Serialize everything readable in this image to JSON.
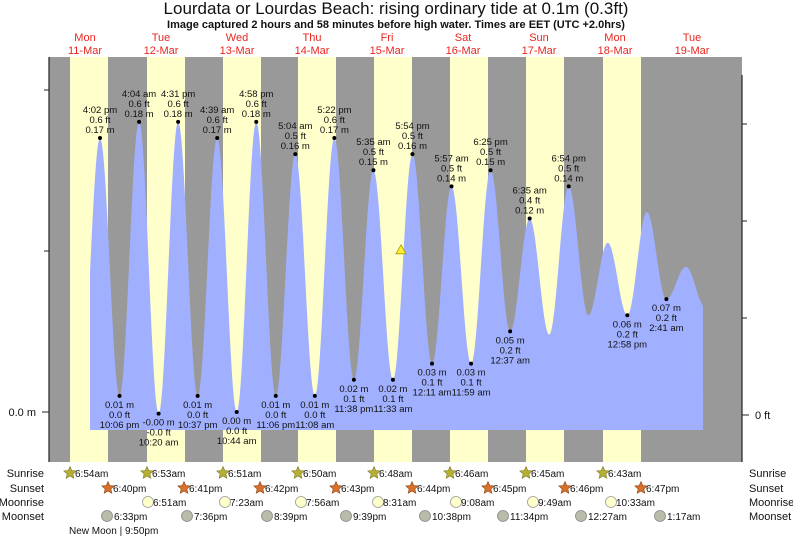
{
  "header": {
    "title": "Lourdata or Lourdas Beach: rising  ordinary tide at 0.1m (0.3ft)",
    "subtitle": "Image captured 2 hours and 58 minutes before high water. Times are EET (UTC +2.0hrs)"
  },
  "days": [
    {
      "name": "Mon",
      "date": "11-Mar"
    },
    {
      "name": "Tue",
      "date": "12-Mar"
    },
    {
      "name": "Wed",
      "date": "13-Mar"
    },
    {
      "name": "Thu",
      "date": "14-Mar"
    },
    {
      "name": "Fri",
      "date": "15-Mar"
    },
    {
      "name": "Sat",
      "date": "16-Mar"
    },
    {
      "name": "Sun",
      "date": "17-Mar"
    },
    {
      "name": "Mon",
      "date": "18-Mar"
    },
    {
      "name": "Tue",
      "date": "19-Mar"
    }
  ],
  "colors": {
    "water": "#a0b0ff",
    "day": "#ffffcc",
    "night": "#999999",
    "day_label": "#e8261f",
    "sunrise": "#b5b033",
    "sunset": "#d9702a",
    "moonrise": "#ffffcc",
    "moonset": "#bbbbaa"
  },
  "chart_data": {
    "type": "area",
    "title": "Lourdata or Lourdas Beach tide",
    "y_left_label": "0.0 m",
    "y_right_label": "0 ft",
    "ylim_m": [
      -0.012,
      0.2
    ],
    "current_level_m": 0.1,
    "extremes": [
      {
        "type": "high",
        "m": 0.17,
        "m_label": "0.17 m",
        "ft_label": "0.6 ft",
        "time": "4:02 pm"
      },
      {
        "type": "low",
        "m": 0.01,
        "m_label": "0.01 m",
        "ft_label": "0.0 ft",
        "time": "10:06 pm"
      },
      {
        "type": "high",
        "m": 0.18,
        "m_label": "0.18 m",
        "ft_label": "0.6 ft",
        "time": "4:04 am"
      },
      {
        "type": "low",
        "m": -0.001,
        "m_label": "-0.00 m",
        "ft_label": "-0.0 ft",
        "time": "10:20 am"
      },
      {
        "type": "high",
        "m": 0.18,
        "m_label": "0.18 m",
        "ft_label": "0.6 ft",
        "time": "4:31 pm"
      },
      {
        "type": "low",
        "m": 0.01,
        "m_label": "0.01 m",
        "ft_label": "0.0 ft",
        "time": "10:37 pm"
      },
      {
        "type": "high",
        "m": 0.17,
        "m_label": "0.17 m",
        "ft_label": "0.6 ft",
        "time": "4:39 am"
      },
      {
        "type": "low",
        "m": 0.0,
        "m_label": "0.00 m",
        "ft_label": "0.0 ft",
        "time": "10:44 am"
      },
      {
        "type": "high",
        "m": 0.18,
        "m_label": "0.18 m",
        "ft_label": "0.6 ft",
        "time": "4:58 pm"
      },
      {
        "type": "low",
        "m": 0.01,
        "m_label": "0.01 m",
        "ft_label": "0.0 ft",
        "time": "11:06 pm"
      },
      {
        "type": "high",
        "m": 0.16,
        "m_label": "0.16 m",
        "ft_label": "0.5 ft",
        "time": "5:04 am"
      },
      {
        "type": "low",
        "m": 0.01,
        "m_label": "0.01 m",
        "ft_label": "0.0 ft",
        "time": "11:08 am"
      },
      {
        "type": "high",
        "m": 0.17,
        "m_label": "0.17 m",
        "ft_label": "0.6 ft",
        "time": "5:22 pm"
      },
      {
        "type": "low",
        "m": 0.02,
        "m_label": "0.02 m",
        "ft_label": "0.1 ft",
        "time": "11:38 pm"
      },
      {
        "type": "high",
        "m": 0.15,
        "m_label": "0.15 m",
        "ft_label": "0.5 ft",
        "time": "5:35 am"
      },
      {
        "type": "low",
        "m": 0.02,
        "m_label": "0.02 m",
        "ft_label": "0.1 ft",
        "time": "11:33 am"
      },
      {
        "type": "high",
        "m": 0.16,
        "m_label": "0.16 m",
        "ft_label": "0.5 ft",
        "time": "5:54 pm"
      },
      {
        "type": "low",
        "m": 0.03,
        "m_label": "0.03 m",
        "ft_label": "0.1 ft",
        "time": "12:11 am"
      },
      {
        "type": "high",
        "m": 0.14,
        "m_label": "0.14 m",
        "ft_label": "0.5 ft",
        "time": "5:57 am"
      },
      {
        "type": "low",
        "m": 0.03,
        "m_label": "0.03 m",
        "ft_label": "0.1 ft",
        "time": "11:59 am"
      },
      {
        "type": "high",
        "m": 0.15,
        "m_label": "0.15 m",
        "ft_label": "0.5 ft",
        "time": "6:25 pm"
      },
      {
        "type": "low",
        "m": 0.05,
        "m_label": "0.05 m",
        "ft_label": "0.2 ft",
        "time": "12:37 am"
      },
      {
        "type": "high",
        "m": 0.12,
        "m_label": "0.12 m",
        "ft_label": "0.4 ft",
        "time": "6:35 am"
      },
      {
        "type": "low",
        "m": 0.048,
        "m_label": null,
        "ft_label": null,
        "time": null
      },
      {
        "type": "high",
        "m": 0.14,
        "m_label": "0.14 m",
        "ft_label": "0.5 ft",
        "time": "6:54 pm"
      },
      {
        "type": "low",
        "m": 0.06,
        "m_label": null,
        "ft_label": null,
        "time": null
      },
      {
        "type": "high",
        "m": 0.105,
        "m_label": null,
        "ft_label": null,
        "time": null
      },
      {
        "type": "low",
        "m": 0.06,
        "m_label": "0.06 m",
        "ft_label": "0.2 ft",
        "time": "12:58 pm"
      },
      {
        "type": "high",
        "m": 0.124,
        "m_label": null,
        "ft_label": null,
        "time": null
      },
      {
        "type": "low",
        "m": 0.07,
        "m_label": "0.07 m",
        "ft_label": "0.2 ft",
        "time": "2:41 am"
      },
      {
        "type": "high",
        "m": 0.09,
        "m_label": null,
        "ft_label": null,
        "time": null
      }
    ]
  },
  "almanac": {
    "labels": {
      "sunrise": "Sunrise",
      "sunset": "Sunset",
      "moonrise": "Moonrise",
      "moonset": "Moonset"
    },
    "sunrise": [
      "6:54am",
      "6:53am",
      "6:51am",
      "6:50am",
      "6:48am",
      "6:46am",
      "6:45am",
      "6:43am"
    ],
    "sunset": [
      "6:40pm",
      "6:41pm",
      "6:42pm",
      "6:43pm",
      "6:44pm",
      "6:45pm",
      "6:46pm",
      "6:47pm"
    ],
    "moonrise": [
      "6:51am",
      "7:23am",
      "7:56am",
      "8:31am",
      "9:08am",
      "9:49am",
      "10:33am"
    ],
    "moonset": [
      "6:33pm",
      "7:36pm",
      "8:39pm",
      "9:39pm",
      "10:38pm",
      "11:34pm",
      "12:27am",
      "1:17am"
    ],
    "moon_phase": "New Moon | 9:50pm"
  }
}
